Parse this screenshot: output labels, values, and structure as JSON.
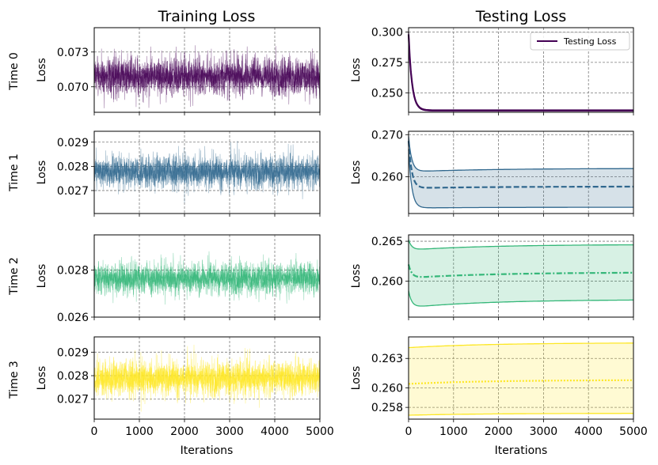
{
  "chart_data": {
    "type": "line",
    "layout": "4x2 grid of subplots",
    "column_titles": [
      "Training Loss",
      "Testing Loss"
    ],
    "row_labels": [
      "Time 0",
      "Time 1",
      "Time 2",
      "Time 3"
    ],
    "xlabel": "Iterations",
    "ylabel": "Loss",
    "xlim": [
      0,
      5000
    ],
    "x_ticks": [
      0,
      1000,
      2000,
      3000,
      4000,
      5000
    ],
    "x_tick_labels": [
      "0",
      "1000",
      "2000",
      "3000",
      "4000",
      "5000"
    ],
    "legend": {
      "label": "Testing Loss",
      "location": "top-right",
      "panel": "Time 0 / Testing Loss"
    },
    "colors": [
      "#440154",
      "#31688e",
      "#35b779",
      "#fde725"
    ],
    "training": [
      {
        "row": "Time 0",
        "ylim": [
          0.0678,
          0.0751
        ],
        "y_ticks": [
          0.07,
          0.073
        ],
        "y_tick_labels": [
          "0.070",
          "0.073"
        ],
        "mean": 0.0709,
        "noise_amplitude": 0.0011,
        "color": "#440154",
        "series": "noisy training loss"
      },
      {
        "row": "Time 1",
        "ylim": [
          0.02605,
          0.02945
        ],
        "y_ticks": [
          0.027,
          0.028,
          0.029
        ],
        "y_tick_labels": [
          "0.027",
          "0.028",
          "0.029"
        ],
        "mean": 0.02778,
        "noise_amplitude": 0.00045,
        "color": "#31688e",
        "series": "noisy training loss"
      },
      {
        "row": "Time 2",
        "ylim": [
          0.026,
          0.0295
        ],
        "y_ticks": [
          0.026,
          0.028
        ],
        "y_tick_labels": [
          "0.026",
          "0.028"
        ],
        "mean": 0.02765,
        "noise_amplitude": 0.00045,
        "color": "#35b779",
        "series": "noisy training loss"
      },
      {
        "row": "Time 3",
        "ylim": [
          0.02615,
          0.02965
        ],
        "y_ticks": [
          0.027,
          0.028,
          0.029
        ],
        "y_tick_labels": [
          "0.027",
          "0.028",
          "0.029"
        ],
        "mean": 0.0279,
        "noise_amplitude": 0.0005,
        "color": "#fde725",
        "series": "noisy training loss"
      }
    ],
    "testing": [
      {
        "row": "Time 0",
        "ylim": [
          0.234,
          0.3035
        ],
        "y_ticks": [
          0.25,
          0.275,
          0.3
        ],
        "y_tick_labels": [
          "0.250",
          "0.275",
          "0.300"
        ],
        "mean_start": 0.298,
        "mean_end": 0.2355,
        "decay_iterations": 350,
        "band_halfwidth": 0.0007,
        "mean_style": "solid",
        "color": "#440154"
      },
      {
        "row": "Time 1",
        "ylim": [
          0.2513,
          0.2708
        ],
        "y_ticks": [
          0.26,
          0.27
        ],
        "y_tick_labels": [
          "0.260",
          "0.270"
        ],
        "mean_start": 0.2685,
        "mean_end": 0.2573,
        "upper_end": 0.2622,
        "lower_end": 0.2527,
        "mean_style": "dashed",
        "color": "#31688e"
      },
      {
        "row": "Time 2",
        "ylim": [
          0.2555,
          0.2658
        ],
        "y_ticks": [
          0.26,
          0.265
        ],
        "y_tick_labels": [
          "0.260",
          "0.265"
        ],
        "mean_start": 0.2621,
        "mean_end": 0.2611,
        "upper_end": 0.2645,
        "lower_end": 0.2577,
        "mean_style": "dash-dot",
        "color": "#35b779"
      },
      {
        "row": "Time 3",
        "ylim": [
          0.2568,
          0.2652
        ],
        "y_ticks": [
          0.258,
          0.26,
          0.263
        ],
        "y_tick_labels": [
          "0.258",
          "0.260",
          "0.263"
        ],
        "mean_start": 0.2604,
        "mean_end": 0.2608,
        "upper_end": 0.2646,
        "lower_end": 0.2574,
        "mean_style": "dotted",
        "color": "#fde725"
      }
    ]
  }
}
